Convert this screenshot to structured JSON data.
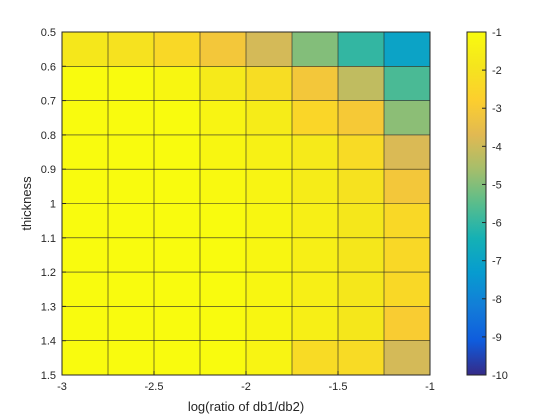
{
  "chart_data": {
    "type": "heatmap",
    "xlabel": "log(ratio of db1/db2)",
    "ylabel": "thickness",
    "xlim": [
      -3,
      -1
    ],
    "ylim": [
      0.5,
      1.5
    ],
    "y_direction": "reversed",
    "grid": true,
    "x_ticks": [
      -3,
      -2.5,
      -2,
      -1.5,
      -1
    ],
    "x_tick_labels": [
      "-3",
      "-2.5",
      "-2",
      "-1.5",
      "-1"
    ],
    "y_ticks": [
      0.5,
      0.6,
      0.7,
      0.8,
      0.9,
      1.0,
      1.1,
      1.2,
      1.3,
      1.4,
      1.5
    ],
    "y_tick_labels": [
      "0.5",
      "0.6",
      "0.7",
      "0.8",
      "0.9",
      "1",
      "1.1",
      "1.2",
      "1.3",
      "1.4",
      "1.5"
    ],
    "x_centers": [
      -2.875,
      -2.625,
      -2.375,
      -2.125,
      -1.875,
      -1.625,
      -1.375,
      -1.125
    ],
    "y_centers": [
      0.55,
      0.65,
      0.75,
      0.85,
      0.95,
      1.05,
      1.15,
      1.25,
      1.35,
      1.45
    ],
    "values": [
      [
        -1.8,
        -2.0,
        -2.4,
        -3.1,
        -3.9,
        -5.0,
        -6.0,
        -7.0
      ],
      [
        -1.0,
        -1.0,
        -1.2,
        -1.7,
        -2.2,
        -3.1,
        -4.2,
        -5.7
      ],
      [
        -1.0,
        -1.0,
        -1.0,
        -1.3,
        -1.6,
        -2.5,
        -3.0,
        -4.9
      ],
      [
        -1.0,
        -1.0,
        -1.0,
        -1.2,
        -1.4,
        -1.7,
        -2.3,
        -3.8
      ],
      [
        -1.0,
        -1.0,
        -1.0,
        -1.1,
        -1.3,
        -1.6,
        -2.0,
        -3.1
      ],
      [
        -1.0,
        -1.0,
        -1.0,
        -1.0,
        -1.2,
        -1.5,
        -1.8,
        -2.4
      ],
      [
        -1.0,
        -1.0,
        -1.0,
        -1.0,
        -1.2,
        -1.5,
        -1.8,
        -2.4
      ],
      [
        -1.0,
        -1.0,
        -1.0,
        -1.0,
        -1.2,
        -1.5,
        -1.8,
        -2.4
      ],
      [
        -1.0,
        -1.0,
        -1.0,
        -1.0,
        -1.2,
        -1.5,
        -1.8,
        -2.9
      ],
      [
        -1.0,
        -1.0,
        -1.0,
        -1.0,
        -1.3,
        -2.3,
        -2.3,
        -3.9
      ]
    ],
    "colorbar": {
      "clim": [
        -10,
        -1
      ],
      "ticks": [
        -1,
        -2,
        -3,
        -4,
        -5,
        -6,
        -7,
        -8,
        -9,
        -10
      ],
      "tick_labels": [
        "-1",
        "-2",
        "-3",
        "-4",
        "-5",
        "-6",
        "-7",
        "-8",
        "-9",
        "-10"
      ],
      "colormap": "parula"
    }
  }
}
